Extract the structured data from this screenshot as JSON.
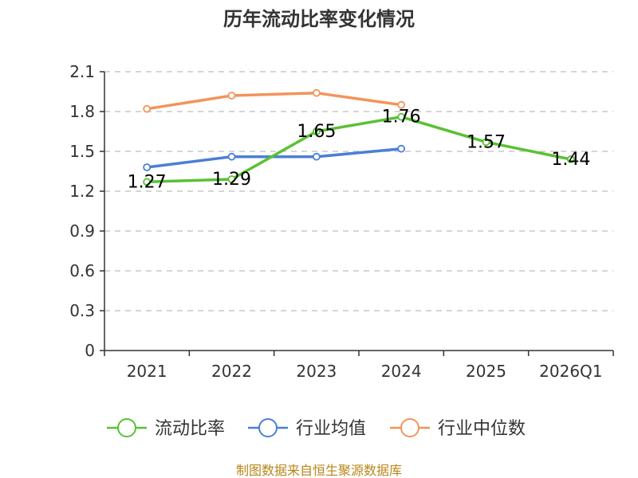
{
  "chart_data": {
    "type": "line",
    "title": "历年流动比率变化情况",
    "categories": [
      "2021",
      "2022",
      "2023",
      "2024",
      "2025",
      "2026Q1"
    ],
    "y_ticks": [
      "0",
      "0.3",
      "0.6",
      "0.9",
      "1.2",
      "1.5",
      "1.8",
      "2.1"
    ],
    "ylim": [
      0,
      2.1
    ],
    "grid": true,
    "legend_position": "bottom",
    "series": [
      {
        "name": "流动比率",
        "color": "#5ac134",
        "values": [
          1.27,
          1.29,
          1.65,
          1.76,
          1.57,
          1.44
        ],
        "labels": [
          "1.27",
          "1.29",
          "1.65",
          "1.76",
          "1.57",
          "1.44"
        ],
        "show_labels": true
      },
      {
        "name": "行业均值",
        "color": "#4a7fd6",
        "values": [
          1.38,
          1.46,
          1.46,
          1.52,
          null,
          null
        ],
        "show_labels": false
      },
      {
        "name": "行业中位数",
        "color": "#f4935a",
        "values": [
          1.82,
          1.92,
          1.94,
          1.85,
          null,
          null
        ],
        "show_labels": false
      }
    ],
    "source": "制图数据来自恒生聚源数据库"
  }
}
